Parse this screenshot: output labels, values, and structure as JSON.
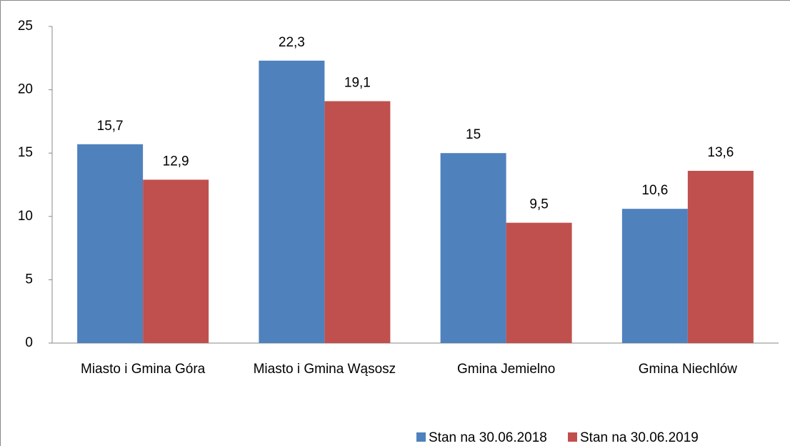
{
  "chart_data": {
    "type": "bar",
    "categories": [
      "Miasto i Gmina Góra",
      "Miasto i Gmina Wąsosz",
      "Gmina Jemielno",
      "Gmina Niechlów"
    ],
    "series": [
      {
        "name": "Stan na 30.06.2018",
        "color": "#4f81bd",
        "values": [
          15.7,
          22.3,
          15,
          10.6
        ],
        "value_labels": [
          "15,7",
          "22,3",
          "15",
          "10,6"
        ]
      },
      {
        "name": "Stan na 30.06.2019",
        "color": "#c0504d",
        "values": [
          12.9,
          19.1,
          9.5,
          13.6
        ],
        "value_labels": [
          "12,9",
          "19,1",
          "9,5",
          "13,6"
        ]
      }
    ],
    "ylim": [
      0,
      25
    ],
    "yticks": [
      0,
      5,
      10,
      15,
      20,
      25
    ],
    "grid": false,
    "legend": "bottom"
  }
}
